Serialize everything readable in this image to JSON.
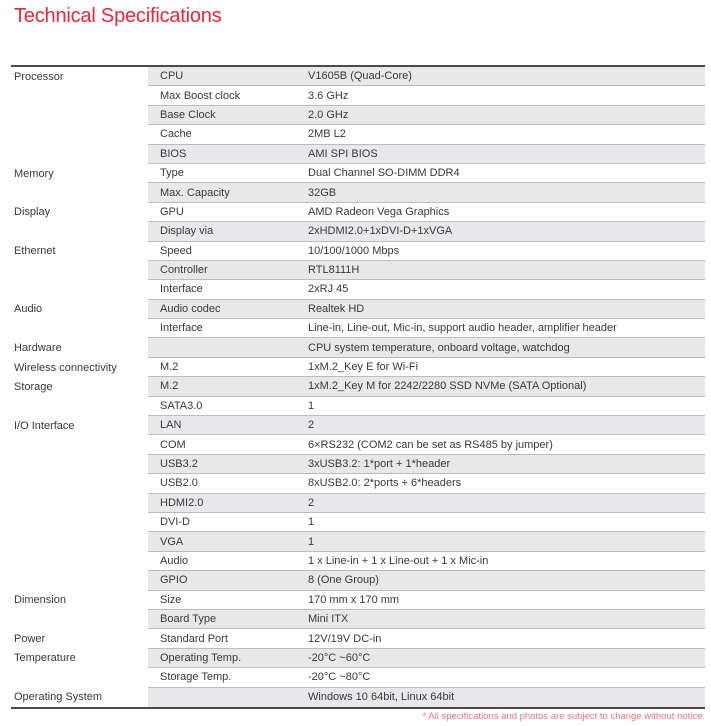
{
  "page": {
    "title": "Technical Specifications",
    "footnote": "* All specifications and photos are subject to change without notice."
  },
  "colors": {
    "title_red": "#ee2437",
    "footnote_red": "#f2707f",
    "row_shade": "#e8e8ea",
    "row_line": "#bcbcbe",
    "table_border": "#4a4a4c",
    "text": "#39393b"
  },
  "table": {
    "rows": [
      {
        "category": "Processor",
        "label": "CPU",
        "value": "V1605B (Quad-Core)",
        "shaded": true
      },
      {
        "category": "",
        "label": "Max Boost clock",
        "value": "3.6 GHz",
        "shaded": false
      },
      {
        "category": "",
        "label": "Base Clock",
        "value": "2.0 GHz",
        "shaded": true
      },
      {
        "category": "",
        "label": "Cache",
        "value": "2MB L2",
        "shaded": false
      },
      {
        "category": "",
        "label": "BIOS",
        "value": "AMI SPI BIOS",
        "shaded": true
      },
      {
        "category": "Memory",
        "label": "Type",
        "value": "Dual Channel SO-DIMM DDR4",
        "shaded": false
      },
      {
        "category": "",
        "label": "Max. Capacity",
        "value": "32GB",
        "shaded": true
      },
      {
        "category": "Display",
        "label": "GPU",
        "value": "AMD Radeon Vega Graphics",
        "shaded": false
      },
      {
        "category": "",
        "label": "Display via",
        "value": "2xHDMI2.0+1xDVI-D+1xVGA",
        "shaded": true
      },
      {
        "category": "Ethernet",
        "label": "Speed",
        "value": "10/100/1000 Mbps",
        "shaded": false
      },
      {
        "category": "",
        "label": "Controller",
        "value": "RTL8111H",
        "shaded": true
      },
      {
        "category": "",
        "label": "Interface",
        "value": "2xRJ 45",
        "shaded": false
      },
      {
        "category": "Audio",
        "label": "Audio codec",
        "value": "Realtek HD",
        "shaded": true
      },
      {
        "category": "",
        "label": "Interface",
        "value": "Line-in, Line-out, Mic-in, support audio header, amplifier header",
        "shaded": false
      },
      {
        "category": "Hardware",
        "label": "",
        "value": "CPU system temperature, onboard voltage, watchdog",
        "shaded": true
      },
      {
        "category": "Wireless connectivity",
        "label": "M.2",
        "value": "1xM.2_Key E for Wi-Fi",
        "shaded": false
      },
      {
        "category": "Storage",
        "label": "M.2",
        "value": "1xM.2_Key M for 2242/2280 SSD NVMe (SATA Optional)",
        "shaded": true
      },
      {
        "category": "",
        "label": "SATA3.0",
        "value": "1",
        "shaded": false
      },
      {
        "category": "I/O Interface",
        "label": "LAN",
        "value": "2",
        "shaded": true
      },
      {
        "category": "",
        "label": "COM",
        "value": "6×RS232 (COM2 can be set as RS485 by jumper)",
        "shaded": false
      },
      {
        "category": "",
        "label": "USB3.2",
        "value": "3xUSB3.2: 1*port + 1*header",
        "shaded": true
      },
      {
        "category": "",
        "label": "USB2.0",
        "value": "8xUSB2.0: 2*ports + 6*headers",
        "shaded": false
      },
      {
        "category": "",
        "label": "HDMI2.0",
        "value": "2",
        "shaded": true
      },
      {
        "category": "",
        "label": "DVI-D",
        "value": "1",
        "shaded": false
      },
      {
        "category": "",
        "label": "VGA",
        "value": "1",
        "shaded": true
      },
      {
        "category": "",
        "label": "Audio",
        "value": "1 x Line-in + 1 x Line-out + 1 x Mic-in",
        "shaded": false
      },
      {
        "category": "",
        "label": "GPIO",
        "value": "8 (One Group)",
        "shaded": true
      },
      {
        "category": "Dimension",
        "label": "Size",
        "value": "170 mm x 170 mm",
        "shaded": false
      },
      {
        "category": "",
        "label": "Board Type",
        "value": "Mini ITX",
        "shaded": true
      },
      {
        "category": "Power",
        "label": "Standard Port",
        "value": "12V/19V DC-in",
        "shaded": false
      },
      {
        "category": "Temperature",
        "label": "Operating Temp.",
        "value": "-20°C ~60°C",
        "shaded": true
      },
      {
        "category": "",
        "label": "Storage Temp.",
        "value": "-20°C ~80°C",
        "shaded": false
      },
      {
        "category": "Operating System",
        "label": "",
        "value": "Windows 10 64bit, Linux 64bit",
        "shaded": true
      }
    ]
  }
}
